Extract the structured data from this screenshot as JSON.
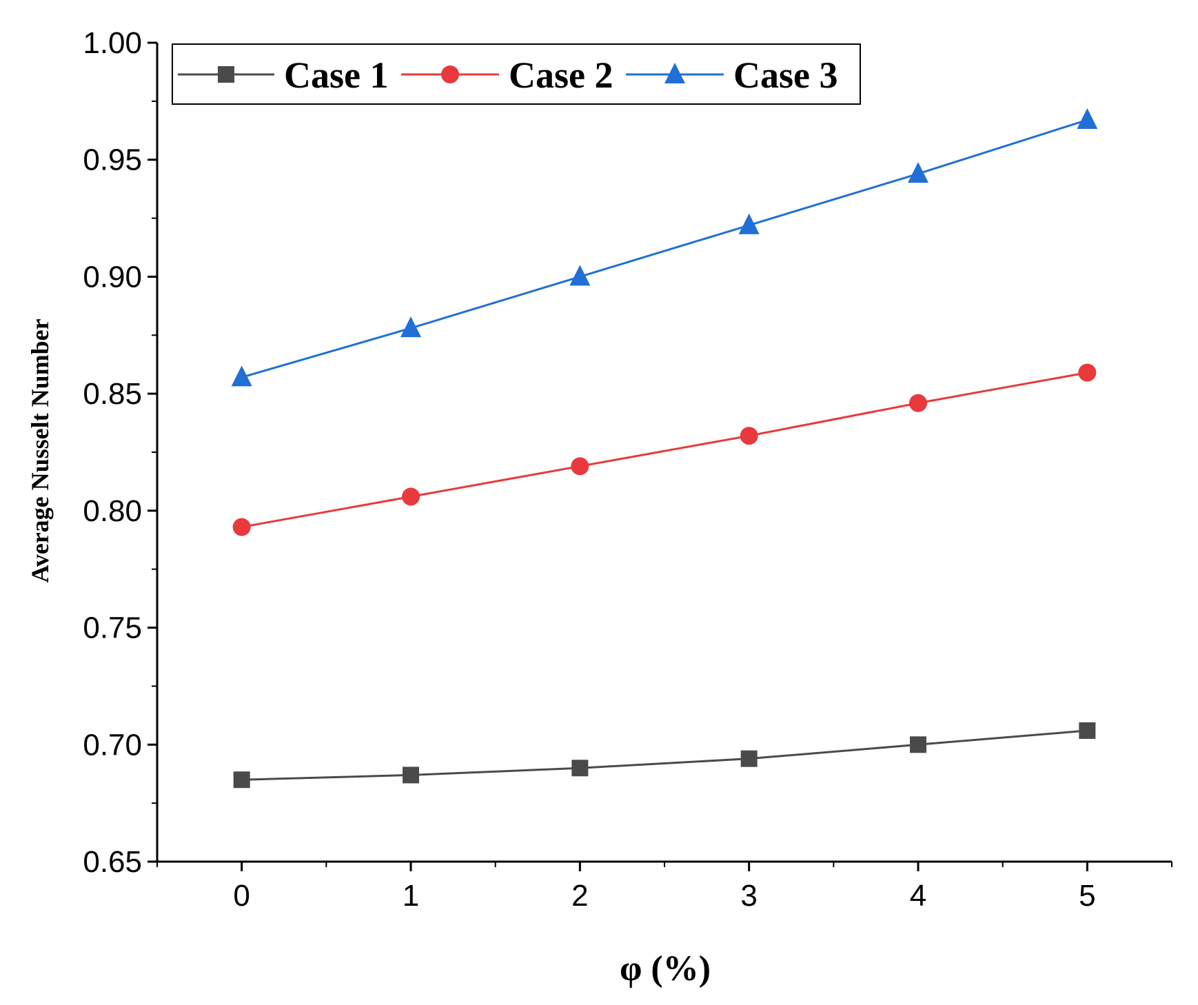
{
  "chart_data": {
    "type": "line",
    "title": "",
    "xlabel": "φ (%)",
    "ylabel": "Average Nusselt Number",
    "x": [
      0,
      1,
      2,
      3,
      4,
      5
    ],
    "xlim": [
      -0.5,
      5.5
    ],
    "ylim": [
      0.65,
      1.0
    ],
    "x_ticks": [
      0,
      1,
      2,
      3,
      4,
      5
    ],
    "x_tick_labels": [
      "0",
      "1",
      "2",
      "3",
      "4",
      "5"
    ],
    "y_ticks": [
      0.65,
      0.7,
      0.75,
      0.8,
      0.85,
      0.9,
      0.95,
      1.0
    ],
    "y_tick_labels": [
      "0.65",
      "0.70",
      "0.75",
      "0.80",
      "0.85",
      "0.90",
      "0.95",
      "1.00"
    ],
    "grid": false,
    "legend_position": "top-left",
    "series": [
      {
        "name": "Case 1",
        "marker": "square",
        "color": "#4a4a4a",
        "values": [
          0.685,
          0.687,
          0.69,
          0.694,
          0.7,
          0.706
        ]
      },
      {
        "name": "Case 2",
        "marker": "circle",
        "color": "#e8393d",
        "values": [
          0.793,
          0.806,
          0.819,
          0.832,
          0.846,
          0.859
        ]
      },
      {
        "name": "Case 3",
        "marker": "triangle",
        "color": "#1f6fd6",
        "values": [
          0.857,
          0.878,
          0.9,
          0.922,
          0.944,
          0.967
        ]
      }
    ]
  }
}
